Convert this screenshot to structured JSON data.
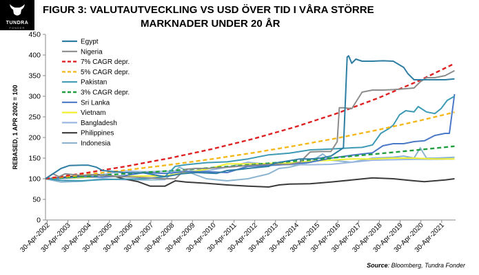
{
  "header": {
    "logo_text": "TUNDRA",
    "logo_subtext": "FONDER",
    "title_line1": "FIGUR 3: VALUTAUTVECKLING  VS USD ÖVER TID I VÅRA STÖRRE",
    "title_line2": "MARKNADER  UNDER 20 ÅR"
  },
  "source": {
    "label": "Source",
    "text": ": Bloomberg, Tundra Fonder"
  },
  "chart_data": {
    "type": "line",
    "title": "FIGUR 3: VALUTAUTVECKLING VS USD ÖVER TID I VÅRA STÖRRE MARKNADER UNDER 20 ÅR",
    "ylabel": "REBASED, 1 APR 2002 = 100",
    "xlabel": "",
    "ylim": [
      0,
      450
    ],
    "yticks": [
      0,
      50,
      100,
      150,
      200,
      250,
      300,
      350,
      400,
      450
    ],
    "xlim": [
      2002.25,
      2022.0
    ],
    "xticks": [
      "30-Apr-2002",
      "30-Apr-2003",
      "30-Apr-2004",
      "30-Apr-2005",
      "30-Apr-2006",
      "30-Apr-2007",
      "30-Apr-2008",
      "30-Apr-2009",
      "30-Apr-2010",
      "30-Apr-2011",
      "30-Apr-2012",
      "30-Apr-2013",
      "30-Apr-2014",
      "30-Apr-2015",
      "30-Apr-2016",
      "30-Apr-2017",
      "30-Apr-2018",
      "30-Apr-2019",
      "30-Apr-2020",
      "30-Apr-2021"
    ],
    "legend_position": "top-left",
    "grid": false,
    "series": [
      {
        "name": "Egypt",
        "color": "#2e7da3",
        "dash": "solid",
        "x": [
          2002.25,
          2002.7,
          2003.0,
          2003.4,
          2004.0,
          2004.3,
          2004.7,
          2005.0,
          2006.0,
          2007.0,
          2008.0,
          2008.8,
          2009.5,
          2010.5,
          2011.0,
          2011.5,
          2012.0,
          2013.0,
          2013.3,
          2013.8,
          2014.5,
          2015.0,
          2015.5,
          2016.0,
          2016.6,
          2016.78,
          2016.85,
          2017.0,
          2017.2,
          2017.5,
          2018.0,
          2018.5,
          2019.0,
          2019.5,
          2019.7,
          2020.0,
          2020.5,
          2021.0,
          2021.5,
          2021.95
        ],
        "y": [
          100,
          115,
          125,
          132,
          133,
          133,
          128,
          120,
          115,
          114,
          105,
          112,
          115,
          113,
          120,
          122,
          125,
          130,
          138,
          142,
          148,
          148,
          150,
          155,
          175,
          395,
          398,
          380,
          390,
          385,
          385,
          386,
          385,
          370,
          355,
          340,
          340,
          340,
          340,
          342
        ]
      },
      {
        "name": "Nigeria",
        "color": "#8c8c8c",
        "dash": "solid",
        "x": [
          2002.25,
          2002.6,
          2002.9,
          2003.2,
          2003.6,
          2004.0,
          2004.5,
          2005.0,
          2006.0,
          2007.0,
          2008.0,
          2008.5,
          2009.0,
          2009.5,
          2010.0,
          2011.0,
          2012.0,
          2013.0,
          2014.0,
          2014.5,
          2015.0,
          2015.5,
          2016.0,
          2016.3,
          2016.4,
          2016.6,
          2017.0,
          2017.5,
          2018.0,
          2018.5,
          2019.0,
          2019.5,
          2020.0,
          2020.3,
          2020.6,
          2021.0,
          2021.5,
          2021.95
        ],
        "y": [
          100,
          112,
          105,
          112,
          110,
          108,
          110,
          108,
          105,
          103,
          100,
          100,
          123,
          125,
          125,
          128,
          132,
          135,
          135,
          140,
          165,
          166,
          166,
          190,
          272,
          272,
          270,
          310,
          315,
          315,
          316,
          318,
          320,
          335,
          345,
          345,
          350,
          362
        ]
      },
      {
        "name": "7% CAGR depr.",
        "color": "#e02020",
        "dash": "dashed",
        "x": [
          2002.25,
          2004.25,
          2006.25,
          2008.25,
          2010.25,
          2012.25,
          2014.25,
          2016.25,
          2018.25,
          2020.25,
          2021.95
        ],
        "y": [
          100,
          114.5,
          131.1,
          150.1,
          171.8,
          196.7,
          225.2,
          257.8,
          295.1,
          337.9,
          379.3
        ]
      },
      {
        "name": "5% CAGR depr.",
        "color": "#f5b818",
        "dash": "dashed",
        "x": [
          2002.25,
          2004.25,
          2006.25,
          2008.25,
          2010.25,
          2012.25,
          2014.25,
          2016.25,
          2018.25,
          2020.25,
          2021.95
        ],
        "y": [
          100,
          110.3,
          121.6,
          134.0,
          147.7,
          162.9,
          179.6,
          198.0,
          218.3,
          240.7,
          261.4
        ]
      },
      {
        "name": "Pakistan",
        "color": "#3d9ab5",
        "dash": "solid",
        "x": [
          2002.25,
          2003.0,
          2004.0,
          2005.0,
          2006.0,
          2007.0,
          2008.0,
          2008.5,
          2009.0,
          2010.0,
          2011.0,
          2012.0,
          2013.0,
          2014.0,
          2015.0,
          2016.0,
          2017.0,
          2017.5,
          2018.0,
          2018.4,
          2018.8,
          2019.0,
          2019.3,
          2019.6,
          2020.0,
          2020.2,
          2020.6,
          2021.0,
          2021.3,
          2021.6,
          2021.95
        ],
        "y": [
          100,
          96,
          95,
          98,
          99,
          100,
          105,
          130,
          134,
          139,
          141,
          148,
          158,
          162,
          170,
          172,
          175,
          176,
          182,
          210,
          222,
          230,
          255,
          265,
          262,
          275,
          262,
          258,
          270,
          290,
          300
        ]
      },
      {
        "name": "3% CAGR depr.",
        "color": "#1e9e3c",
        "dash": "dashed",
        "x": [
          2002.25,
          2004.25,
          2006.25,
          2008.25,
          2010.25,
          2012.25,
          2014.25,
          2016.25,
          2018.25,
          2020.25,
          2021.95
        ],
        "y": [
          100,
          106.1,
          112.6,
          119.4,
          126.7,
          134.4,
          142.6,
          151.3,
          160.5,
          170.2,
          178.8
        ]
      },
      {
        "name": "Sri Lanka",
        "color": "#4a78c8",
        "dash": "solid",
        "x": [
          2002.25,
          2003.0,
          2004.0,
          2005.0,
          2006.0,
          2007.0,
          2008.0,
          2009.0,
          2010.0,
          2011.0,
          2012.0,
          2013.0,
          2014.0,
          2015.0,
          2016.0,
          2017.0,
          2018.0,
          2018.5,
          2019.0,
          2019.5,
          2020.0,
          2020.5,
          2021.0,
          2021.5,
          2021.7,
          2021.95
        ],
        "y": [
          100,
          101,
          105,
          104,
          107,
          115,
          113,
          117,
          117,
          115,
          130,
          132,
          135,
          140,
          150,
          157,
          163,
          180,
          185,
          185,
          190,
          192,
          205,
          210,
          210,
          305
        ]
      },
      {
        "name": "Vietnam",
        "color": "#f0f030",
        "dash": "solid",
        "x": [
          2002.25,
          2004.0,
          2006.0,
          2008.0,
          2009.0,
          2010.0,
          2011.0,
          2012.0,
          2013.0,
          2014.0,
          2015.0,
          2016.0,
          2017.0,
          2018.0,
          2019.0,
          2020.0,
          2021.0,
          2021.95
        ],
        "y": [
          100,
          103,
          106,
          107,
          115,
          123,
          136,
          136,
          137,
          138,
          142,
          145,
          148,
          148,
          150,
          150,
          148,
          148
        ]
      },
      {
        "name": "Bangladesh",
        "color": "#9bb8e0",
        "dash": "solid",
        "x": [
          2002.25,
          2003.0,
          2004.0,
          2005.0,
          2006.0,
          2007.0,
          2008.0,
          2009.0,
          2010.0,
          2011.0,
          2012.0,
          2013.0,
          2014.0,
          2015.0,
          2016.0,
          2017.0,
          2018.0,
          2019.0,
          2020.0,
          2021.0,
          2021.95
        ],
        "y": [
          100,
          101,
          102,
          110,
          119,
          117,
          118,
          119,
          119,
          128,
          140,
          135,
          134,
          134,
          135,
          140,
          145,
          146,
          147,
          147,
          148
        ]
      },
      {
        "name": "Philippines",
        "color": "#3a3a3a",
        "dash": "solid",
        "x": [
          2002.25,
          2003.0,
          2004.0,
          2004.8,
          2005.5,
          2006.0,
          2006.7,
          2007.3,
          2008.0,
          2008.5,
          2009.0,
          2010.0,
          2011.0,
          2012.0,
          2013.0,
          2013.5,
          2014.0,
          2015.0,
          2016.0,
          2017.0,
          2018.0,
          2019.0,
          2020.0,
          2020.5,
          2021.0,
          2021.5,
          2021.95
        ],
        "y": [
          100,
          103,
          108,
          110,
          107,
          100,
          93,
          82,
          82,
          95,
          92,
          89,
          85,
          82,
          80,
          85,
          87,
          88,
          92,
          97,
          102,
          100,
          95,
          93,
          95,
          97,
          100
        ]
      },
      {
        "name": "Indonesia",
        "color": "#8cb4d0",
        "dash": "solid",
        "x": [
          2002.25,
          2003.0,
          2004.0,
          2005.0,
          2006.0,
          2007.0,
          2008.0,
          2008.7,
          2009.2,
          2010.0,
          2011.0,
          2012.0,
          2013.0,
          2013.5,
          2014.0,
          2015.0,
          2015.6,
          2016.0,
          2017.0,
          2018.0,
          2019.0,
          2019.5,
          2020.0,
          2020.3,
          2020.6,
          2021.0,
          2021.95
        ],
        "y": [
          100,
          92,
          94,
          100,
          98,
          97,
          98,
          128,
          115,
          100,
          95,
          100,
          112,
          125,
          128,
          140,
          160,
          145,
          140,
          150,
          152,
          155,
          150,
          175,
          150,
          150,
          152
        ]
      }
    ]
  }
}
